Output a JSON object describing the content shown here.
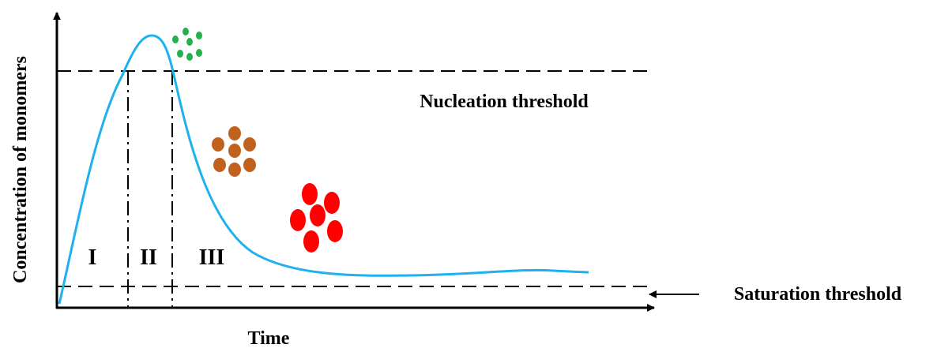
{
  "axes": {
    "x_label": "Time",
    "y_label": "Concentration of monomers"
  },
  "thresholds": {
    "nucleation": "Nucleation threshold",
    "saturation": "Saturation threshold"
  },
  "stages": [
    "I",
    "II",
    "III"
  ]
}
